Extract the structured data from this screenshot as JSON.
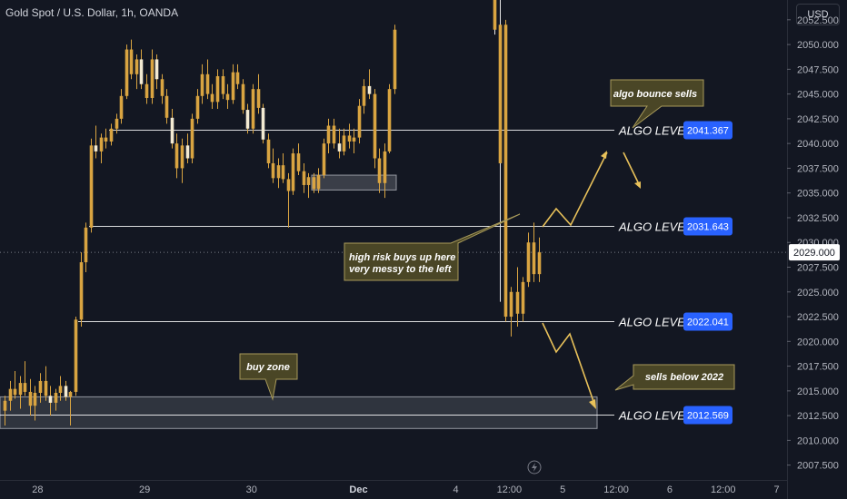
{
  "header": {
    "title": "Gold Spot / U.S. Dollar, 1h, OANDA",
    "currency": "USD"
  },
  "colors": {
    "background": "#131722",
    "candle": "#d9a441",
    "level_line": "#ffffff",
    "price_tag": "#2962ff",
    "arrow": "#e8c15a",
    "note_fill": "#4a4626",
    "note_border": "#a89a5a",
    "zone_fill": "#c9cbd1"
  },
  "icons": {
    "flash": "lightning-bolt-icon"
  },
  "chart_data": {
    "type": "candlestick",
    "title": "Gold Spot / U.S. Dollar, 1h, OANDA",
    "ylim": [
      2006,
      2054.5
    ],
    "y_ticks": [
      "2052.500",
      "2050.000",
      "2047.500",
      "2045.000",
      "2042.500",
      "2040.000",
      "2037.500",
      "2035.000",
      "2032.500",
      "2030.000",
      "2027.500",
      "2025.000",
      "2022.500",
      "2020.000",
      "2017.500",
      "2015.000",
      "2012.500",
      "2010.000",
      "2007.500"
    ],
    "x_ticks": [
      {
        "label": "28",
        "t": 0.2,
        "bold": false
      },
      {
        "label": "29",
        "t": 1.3,
        "bold": false
      },
      {
        "label": "30",
        "t": 2.4,
        "bold": false
      },
      {
        "label": "Dec",
        "t": 3.5,
        "bold": true
      },
      {
        "label": "4",
        "t": 4.5,
        "bold": false
      },
      {
        "label": "12:00",
        "t": 5.05,
        "bold": false
      },
      {
        "label": "5",
        "t": 5.6,
        "bold": false
      },
      {
        "label": "12:00",
        "t": 6.15,
        "bold": false
      },
      {
        "label": "6",
        "t": 6.7,
        "bold": false
      },
      {
        "label": "12:00",
        "t": 7.25,
        "bold": false
      },
      {
        "label": "7",
        "t": 7.8,
        "bold": false
      }
    ],
    "current_price": "2029.000",
    "levels": [
      {
        "label": "ALGO LEVEL",
        "price": "2041.367"
      },
      {
        "label": "ALGO LEVEL",
        "price": "2031.643"
      },
      {
        "label": "ALGO LEVEL",
        "price": "2022.041"
      },
      {
        "label": "ALGO LEVEL",
        "price": "2012.569"
      }
    ],
    "buy_zone": {
      "y_from": 2011.2,
      "y_to": 2014.4
    },
    "consolidation_box": {
      "y_from": 2035.3,
      "y_to": 2036.8
    },
    "annotations": [
      "algo bounce sells",
      "high risk buys up here",
      "very messy to the left",
      "buy zone",
      "sells below 2022"
    ],
    "candles": [
      [
        2013.0,
        2014.5,
        2011.5,
        2014.0
      ],
      [
        2014.0,
        2016.0,
        2013.0,
        2015.2
      ],
      [
        2015.2,
        2017.0,
        2014.2,
        2014.6
      ],
      [
        2014.6,
        2016.5,
        2013.2,
        2015.8
      ],
      [
        2015.8,
        2018.0,
        2014.5,
        2014.9
      ],
      [
        2014.9,
        2016.2,
        2012.5,
        2013.5
      ],
      [
        2013.5,
        2015.5,
        2012.0,
        2014.8
      ],
      [
        2014.8,
        2016.8,
        2013.8,
        2016.0
      ],
      [
        2016.0,
        2017.5,
        2014.0,
        2014.5
      ],
      [
        2014.5,
        2015.5,
        2012.5,
        2013.8
      ],
      [
        2013.8,
        2015.2,
        2013.0,
        2014.8
      ],
      [
        2014.8,
        2016.5,
        2014.0,
        2015.5
      ],
      [
        2015.5,
        2016.0,
        2014.0,
        2014.4
      ],
      [
        2014.4,
        2015.0,
        2011.5,
        2014.9
      ],
      [
        2014.9,
        2022.5,
        2014.5,
        2022.2
      ],
      [
        2022.2,
        2029.0,
        2021.5,
        2028.0
      ],
      [
        2028.0,
        2032.0,
        2027.0,
        2031.5
      ],
      [
        2031.5,
        2040.5,
        2031.0,
        2039.8
      ],
      [
        2039.8,
        2041.8,
        2038.5,
        2039.2
      ],
      [
        2039.2,
        2041.0,
        2038.0,
        2040.6
      ],
      [
        2040.6,
        2041.5,
        2039.5,
        2040.2
      ],
      [
        2040.2,
        2042.0,
        2039.8,
        2041.5
      ],
      [
        2041.5,
        2043.0,
        2041.0,
        2042.5
      ],
      [
        2042.5,
        2045.5,
        2042.0,
        2044.8
      ],
      [
        2044.8,
        2050.0,
        2044.5,
        2049.5
      ],
      [
        2049.5,
        2050.5,
        2046.5,
        2047.0
      ],
      [
        2047.0,
        2049.0,
        2045.5,
        2048.5
      ],
      [
        2048.5,
        2049.5,
        2045.5,
        2046.0
      ],
      [
        2046.0,
        2047.0,
        2044.0,
        2044.6
      ],
      [
        2044.6,
        2049.5,
        2044.0,
        2048.5
      ],
      [
        2048.5,
        2049.0,
        2045.5,
        2046.5
      ],
      [
        2046.5,
        2047.0,
        2044.0,
        2044.8
      ],
      [
        2044.8,
        2045.5,
        2042.0,
        2042.6
      ],
      [
        2042.6,
        2043.5,
        2039.5,
        2040.0
      ],
      [
        2040.0,
        2041.0,
        2036.5,
        2037.5
      ],
      [
        2037.5,
        2040.5,
        2036.0,
        2039.8
      ],
      [
        2039.8,
        2041.0,
        2038.0,
        2038.5
      ],
      [
        2038.5,
        2043.0,
        2038.0,
        2042.5
      ],
      [
        2042.5,
        2045.5,
        2042.0,
        2044.8
      ],
      [
        2044.8,
        2048.0,
        2044.0,
        2047.0
      ],
      [
        2047.0,
        2048.5,
        2044.5,
        2045.0
      ],
      [
        2045.0,
        2046.0,
        2043.5,
        2044.2
      ],
      [
        2044.2,
        2047.5,
        2043.5,
        2046.8
      ],
      [
        2046.8,
        2047.5,
        2044.5,
        2045.0
      ],
      [
        2045.0,
        2046.0,
        2043.5,
        2044.4
      ],
      [
        2044.4,
        2048.0,
        2044.0,
        2047.2
      ],
      [
        2047.2,
        2048.0,
        2045.5,
        2046.0
      ],
      [
        2046.0,
        2046.5,
        2043.0,
        2043.4
      ],
      [
        2043.4,
        2044.0,
        2041.0,
        2041.5
      ],
      [
        2041.5,
        2046.0,
        2041.0,
        2045.5
      ],
      [
        2045.5,
        2047.0,
        2043.0,
        2043.6
      ],
      [
        2043.6,
        2044.0,
        2040.0,
        2040.4
      ],
      [
        2040.4,
        2041.0,
        2037.5,
        2038.0
      ],
      [
        2038.0,
        2039.5,
        2036.0,
        2036.5
      ],
      [
        2036.5,
        2038.5,
        2035.5,
        2037.8
      ],
      [
        2037.8,
        2039.0,
        2036.0,
        2036.4
      ],
      [
        2036.4,
        2037.0,
        2031.5,
        2035.2
      ],
      [
        2035.2,
        2039.5,
        2034.8,
        2039.0
      ],
      [
        2039.0,
        2040.0,
        2036.8,
        2037.2
      ],
      [
        2037.2,
        2038.0,
        2035.0,
        2035.8
      ],
      [
        2035.8,
        2037.0,
        2034.5,
        2036.6
      ],
      [
        2036.6,
        2037.0,
        2035.0,
        2035.4
      ],
      [
        2035.4,
        2037.5,
        2035.0,
        2036.8
      ],
      [
        2036.8,
        2040.5,
        2036.5,
        2040.0
      ],
      [
        2040.0,
        2042.5,
        2039.0,
        2041.8
      ],
      [
        2041.8,
        2042.5,
        2039.5,
        2040.0
      ],
      [
        2040.0,
        2041.5,
        2038.5,
        2039.2
      ],
      [
        2039.2,
        2041.5,
        2038.8,
        2040.8
      ],
      [
        2040.8,
        2042.0,
        2039.5,
        2040.2
      ],
      [
        2040.2,
        2041.5,
        2039.0,
        2040.6
      ],
      [
        2040.6,
        2044.5,
        2040.0,
        2043.8
      ],
      [
        2043.8,
        2046.5,
        2043.0,
        2045.8
      ],
      [
        2045.8,
        2047.5,
        2044.5,
        2045.0
      ],
      [
        2045.0,
        2045.5,
        2037.5,
        2038.5
      ],
      [
        2038.5,
        2039.5,
        2035.0,
        2036.0
      ],
      [
        2036.0,
        2040.0,
        2034.5,
        2039.2
      ],
      [
        2039.2,
        2046.0,
        2039.0,
        2045.5
      ],
      [
        2045.5,
        2052.0,
        2045.0,
        2051.5
      ],
      [
        2051.5,
        2058.0,
        2051.0,
        2057.0
      ],
      [
        2038.0,
        2072.0,
        2024.0,
        2052.0
      ],
      [
        2052.0,
        2052.5,
        2022.0,
        2022.5
      ],
      [
        2022.5,
        2025.5,
        2020.5,
        2025.0
      ],
      [
        2025.0,
        2027.5,
        2021.5,
        2022.8
      ],
      [
        2022.8,
        2026.5,
        2022.0,
        2026.0
      ],
      [
        2026.0,
        2031.0,
        2025.5,
        2030.0
      ],
      [
        2030.0,
        2032.0,
        2026.0,
        2026.8
      ],
      [
        2026.8,
        2030.5,
        2026.0,
        2029.0
      ]
    ]
  },
  "arrows": [
    "bounce-path-arrow",
    "bounce-sell-arrow",
    "breakdown-sell-arrow"
  ]
}
